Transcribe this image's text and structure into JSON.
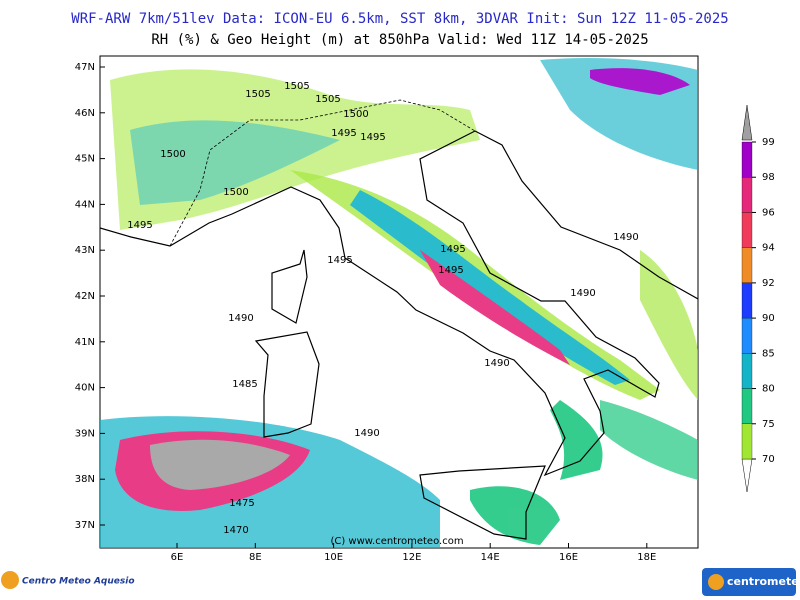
{
  "header": {
    "title": "WRF-ARW 7km/51lev  Data: ICON-EU 6.5km, SST 8km, 3DVAR  Init: Sun 12Z 11-05-2025",
    "subtitle": "RH (%) & Geo Height (m) at 850hPa  Valid: Wed 11Z 14-05-2025"
  },
  "map": {
    "lat_labels": [
      "47N",
      "46N",
      "45N",
      "44N",
      "43N",
      "42N",
      "41N",
      "40N",
      "39N",
      "38N",
      "37N"
    ],
    "lon_labels": [
      "6E",
      "8E",
      "10E",
      "12E",
      "14E",
      "16E",
      "18E"
    ],
    "contour_labels": [
      1505,
      1505,
      1505,
      1500,
      1495,
      1495,
      1500,
      1500,
      1495,
      1495,
      1495,
      1495,
      1490,
      1490,
      1490,
      1490,
      1485,
      1490,
      1475,
      1470
    ],
    "copyright": "(C) www.centrometeo.com"
  },
  "colorbar": {
    "ticks": [
      99,
      98,
      96,
      94,
      92,
      90,
      85,
      80,
      75,
      70
    ],
    "colors": [
      "#a000c8",
      "#e6287a",
      "#f03c5a",
      "#f08c28",
      "#1e3cff",
      "#1e8cff",
      "#14b4c8",
      "#20c882",
      "#a0e632"
    ]
  },
  "footer": {
    "left_logo": "Centro Meteo Aquesio",
    "right_logo": "centrometeo"
  }
}
